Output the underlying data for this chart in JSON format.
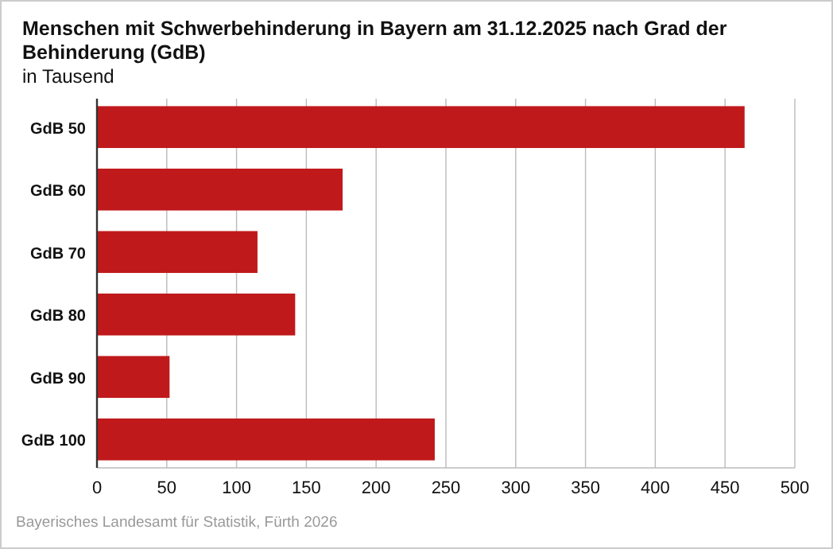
{
  "chart_data": {
    "type": "bar",
    "orientation": "horizontal",
    "title": "Menschen mit Schwerbehinderung in Bayern am 31.12.2025 nach Grad der Behinderung (GdB)",
    "subtitle": "in Tausend",
    "categories": [
      "GdB 50",
      "GdB 60",
      "GdB 70",
      "GdB 80",
      "GdB 90",
      "GdB 100"
    ],
    "values": [
      464,
      176,
      115,
      142,
      52,
      242
    ],
    "color": "#c0191b",
    "xlim": [
      0,
      500
    ],
    "xticks": [
      0,
      50,
      100,
      150,
      200,
      250,
      300,
      350,
      400,
      450,
      500
    ],
    "grid": "x",
    "annotations": [
      "Bayerisches Landesamt für Statistik, Fürth 2026"
    ]
  }
}
